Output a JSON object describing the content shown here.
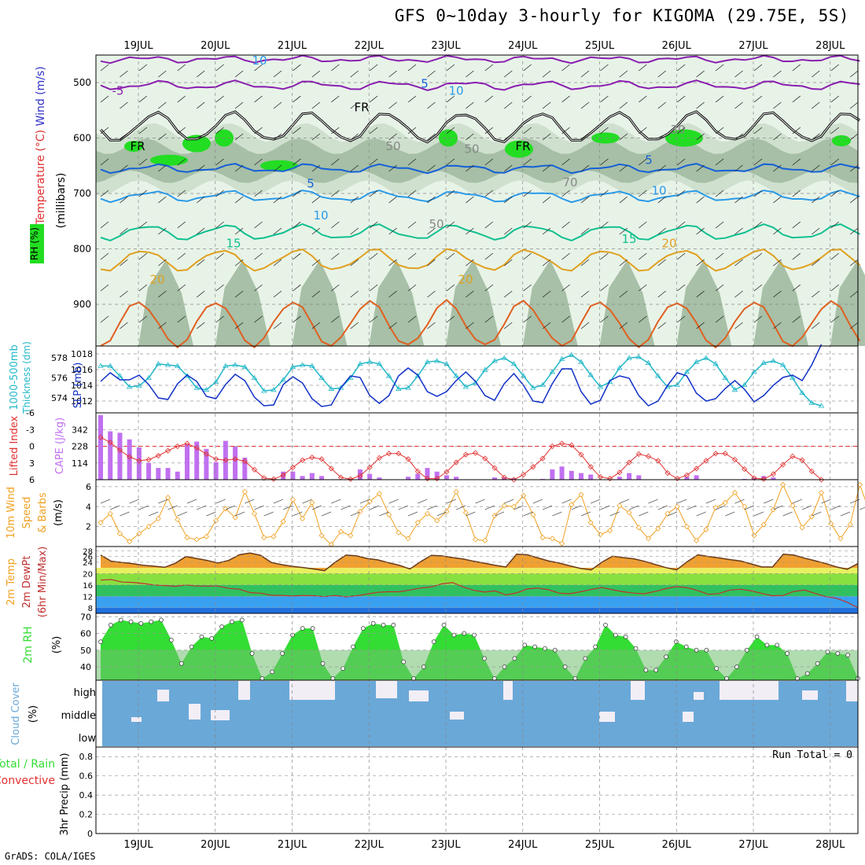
{
  "title": "GFS 0~10day 3-hourly for KIGOMA (29.75E, 5S)",
  "credit": "GrADS: COLA/IGES",
  "colors": {
    "rh_dark": "#9bb69b",
    "rh_mid": "#cfe0cf",
    "rh_light": "#e8f3e8",
    "rh_bright": "#22dd22",
    "thickness": "#22b8c8",
    "slp": "#1030c8",
    "cape": "#c070f0",
    "lifted": "#e03030",
    "wind10": "#f0a020",
    "temp_fill": "#f0a030",
    "rh2m": "#33dd33",
    "cloud": "#6aa8d8"
  },
  "chart_data": [
    {
      "type": "heatmap",
      "name": "upper-air cross-section",
      "ylabel_parts": [
        "Temperature",
        "(°C)",
        "Wind",
        "(m/s)"
      ],
      "ylabel2": "(millibars)",
      "rh_label": "RH (%)",
      "y_ticks": [
        500,
        600,
        700,
        800,
        900
      ],
      "ylim": [
        1000,
        450
      ],
      "x_ticks": [
        "19JUL",
        "20JUL",
        "21JUL",
        "22JUL",
        "23JUL",
        "24JUL",
        "25JUL",
        "26JUL",
        "27JUL",
        "28JUL"
      ],
      "contour_labels": [
        {
          "text": "-5",
          "p": 515
        },
        {
          "text": "5",
          "p": 502
        },
        {
          "text": "10",
          "p": 460
        },
        {
          "text": "10",
          "p": 515
        },
        {
          "text": "FR",
          "p": 545
        },
        {
          "text": "FR",
          "p": 615
        },
        {
          "text": "FR",
          "p": 615
        },
        {
          "text": "5",
          "p": 682
        },
        {
          "text": "5",
          "p": 640
        },
        {
          "text": "10",
          "p": 740
        },
        {
          "text": "10",
          "p": 695
        },
        {
          "text": "15",
          "p": 790
        },
        {
          "text": "15",
          "p": 782
        },
        {
          "text": "20",
          "p": 855
        },
        {
          "text": "20",
          "p": 855
        },
        {
          "text": "20",
          "p": 790
        },
        {
          "text": "30",
          "p": 585
        },
        {
          "text": "50",
          "p": 615
        },
        {
          "text": "50",
          "p": 755
        },
        {
          "text": "50",
          "p": 620
        },
        {
          "text": "70",
          "p": 680
        }
      ]
    },
    {
      "type": "line",
      "name": "thickness-slp",
      "ylabel_left": "1000-500mb Thickness (dm)",
      "ylabel_right": "SLP (mb)",
      "y_ticks_left": [
        574,
        576,
        578
      ],
      "y_ticks_right": [
        1012,
        1014,
        1016,
        1018
      ],
      "ylim_left": [
        572.5,
        579.2
      ],
      "ylim_right": [
        1010.5,
        1019
      ],
      "series": [
        {
          "values": [
            577.2,
            577.2,
            576.2,
            575.1,
            575.2,
            576.0,
            577.4,
            577.3,
            577.2,
            576.2,
            575.0,
            574.8,
            575.6,
            577.2,
            577.3,
            577.1,
            576.0,
            574.7,
            574.8,
            575.8,
            577.1,
            577.3,
            577.2,
            576.0,
            574.9,
            575.0,
            576.0,
            577.4,
            577.6,
            577.4,
            576.2,
            574.9,
            575.0,
            576.2,
            577.6,
            577.7,
            577.4,
            576.2,
            575.1,
            575.5,
            576.8,
            577.7,
            578.0,
            577.4,
            576.2,
            575.0,
            575.3,
            576.6,
            577.9,
            578.3,
            577.6,
            576.3,
            575.1,
            575.6,
            577.0,
            578.0,
            578.1,
            577.5,
            576.2,
            575.1,
            575.3,
            576.6,
            577.6,
            578.0,
            577.4,
            576.0,
            574.8,
            575.3,
            576.6,
            577.5,
            577.7,
            577.3,
            576.0,
            574.5,
            573.5,
            573.2
          ]
        },
        {
          "values": [
            1014.5,
            1015.6,
            1014.7,
            1014.7,
            1015.3,
            1014.1,
            1012.4,
            1012.2,
            1014.2,
            1015.3,
            1014.5,
            1012.6,
            1012.3,
            1014.1,
            1015.4,
            1014.6,
            1012.5,
            1011.4,
            1011.5,
            1014.1,
            1015.1,
            1014.3,
            1012.3,
            1011.3,
            1011.5,
            1013.7,
            1015.2,
            1015.0,
            1012.7,
            1011.7,
            1012.7,
            1015.2,
            1016.2,
            1015.3,
            1013.2,
            1012.6,
            1013.2,
            1014.6,
            1015.7,
            1014.5,
            1012.7,
            1012.1,
            1014.2,
            1015.5,
            1014.0,
            1012.0,
            1011.8,
            1014.2,
            1016.1,
            1016.1,
            1013.2,
            1011.6,
            1012.1,
            1014.6,
            1015.2,
            1014.9,
            1012.7,
            1011.4,
            1012.0,
            1014.0,
            1015.6,
            1015.2,
            1013.0,
            1012.0,
            1012.3,
            1013.6,
            1014.6,
            1013.5,
            1011.9,
            1012.7,
            1014.0,
            1015.0,
            1015.3,
            1014.6,
            1016.6,
            1019.2
          ]
        }
      ]
    },
    {
      "type": "bar",
      "name": "cape-lifted",
      "ylabel_left": "Lifted Index",
      "ylabel_right": "CAPE (J/kg)",
      "y_ticks_left": [
        "-6",
        "-3",
        "0",
        "3",
        "6"
      ],
      "y_ticks_right": [
        114,
        228,
        342
      ],
      "ylim_cape": [
        0,
        456
      ],
      "ylim_li": [
        -6,
        6
      ],
      "series": [
        {
          "values": [
            440,
            330,
            320,
            275,
            220,
            115,
            80,
            80,
            55,
            240,
            260,
            210,
            120,
            265,
            225,
            150,
            0,
            0,
            0,
            55,
            55,
            25,
            45,
            25,
            0,
            0,
            0,
            70,
            40,
            15,
            0,
            0,
            20,
            40,
            80,
            55,
            30,
            20,
            0,
            0,
            0,
            15,
            15,
            10,
            0,
            0,
            5,
            70,
            90,
            60,
            45,
            35,
            0,
            0,
            20,
            45,
            30,
            0,
            0,
            0,
            0,
            20,
            30,
            0,
            0,
            0,
            0,
            5,
            15,
            25,
            15,
            0,
            0,
            0,
            0,
            0
          ]
        },
        {
          "values": [
            -1.6,
            -0.7,
            0.7,
            1.9,
            2.6,
            2.4,
            1.7,
            0.8,
            0.0,
            -0.5,
            0.3,
            1.4,
            2.3,
            2.5,
            2.3,
            2.7,
            4.2,
            5.7,
            5.9,
            5.2,
            3.8,
            2.5,
            2.0,
            2.3,
            4.0,
            5.6,
            5.9,
            5.3,
            3.8,
            2.1,
            1.3,
            1.3,
            2.3,
            4.5,
            5.8,
            5.8,
            4.6,
            2.9,
            1.5,
            1.2,
            2.2,
            3.9,
            5.6,
            6.0,
            5.1,
            3.7,
            2.2,
            0.0,
            -0.5,
            -0.2,
            1.5,
            3.7,
            5.5,
            5.8,
            4.7,
            2.9,
            1.4,
            1.8,
            2.6,
            4.8,
            5.8,
            5.2,
            4.0,
            2.6,
            1.3,
            1.3,
            2.4,
            4.1,
            5.7,
            5.9,
            5.0,
            3.3,
            1.8,
            2.5,
            4.5,
            6.0
          ]
        }
      ]
    },
    {
      "type": "line",
      "name": "wind10",
      "ylabel": [
        "10m Wind",
        "Speed",
        "& Barbs",
        "(m/s)"
      ],
      "y_ticks": [
        2,
        4,
        6
      ],
      "ylim": [
        0,
        6.7
      ],
      "series": [
        {
          "values": [
            2.4,
            3.3,
            1.3,
            0.5,
            1.3,
            2.0,
            2.8,
            4.9,
            2.7,
            0.9,
            0.7,
            1.0,
            2.6,
            3.8,
            2.9,
            5.5,
            3.3,
            0.9,
            1.0,
            2.5,
            4.7,
            2.8,
            4.4,
            1.1,
            0.2,
            1.5,
            1.1,
            3.5,
            4.5,
            5.3,
            3.2,
            1.4,
            0.8,
            2.4,
            3.3,
            2.6,
            3.5,
            5.5,
            3.4,
            0.7,
            0.6,
            3.1,
            4.1,
            4.0,
            5.1,
            3.2,
            0.9,
            0.8,
            0.3,
            4.2,
            5.2,
            2.4,
            1.2,
            1.6,
            4.1,
            3.4,
            1.9,
            0.8,
            1.8,
            3.3,
            4.0,
            2.0,
            0.6,
            1.7,
            3.9,
            4.4,
            5.4,
            4.0,
            1.1,
            2.2,
            3.7,
            6.2,
            4.1,
            1.9,
            3.0,
            5.4,
            2.3,
            0.8,
            2.2,
            6.2,
            3.5
          ]
        }
      ]
    },
    {
      "type": "area",
      "name": "temperature-2m",
      "ylabel": [
        "2m Temp",
        "2m DewPt",
        "(6hr Min/Max)"
      ],
      "y_ticks": [
        8,
        12,
        16,
        20,
        24,
        26,
        28
      ],
      "ylim": [
        6,
        29.5
      ],
      "series": [
        {
          "values": [
            26.5,
            24.3,
            23.9,
            23.5,
            22.9,
            22.6,
            22.2,
            23.6,
            26.0,
            25.3,
            24.6,
            23.7,
            24.6,
            26.6,
            27.2,
            26.4,
            23.9,
            23.1,
            22.5,
            22.1,
            21.6,
            21.0,
            24.0,
            26.5,
            26.2,
            25.3,
            24.8,
            23.8,
            22.9,
            21.6,
            24.2,
            26.4,
            26.2,
            25.6,
            25.1,
            24.3,
            23.6,
            22.9,
            22.3,
            26.8,
            26.6,
            25.5,
            24.4,
            23.7,
            22.7,
            21.8,
            21.3,
            24.0,
            26.1,
            25.6,
            25.2,
            24.3,
            23.2,
            22.1,
            21.3,
            24.2,
            26.6,
            26.0,
            25.5,
            24.9,
            24.4,
            23.4,
            22.3,
            22.3,
            26.8,
            26.5,
            25.4,
            24.5,
            23.5,
            22.3,
            21.5,
            23.5
          ]
        },
        {
          "values": [
            17.7,
            17.9,
            17.0,
            16.9,
            16.5,
            16.0,
            15.8,
            15.5,
            16.0,
            15.6,
            15.6,
            15.6,
            14.8,
            14.5,
            13.3,
            13.1,
            12.4,
            12.3,
            12.1,
            12.3,
            12.2,
            11.9,
            12.3,
            11.8,
            12.2,
            12.8,
            13.4,
            13.6,
            13.6,
            14.2,
            14.9,
            15.3,
            16.4,
            16.8,
            15.3,
            14.1,
            13.5,
            13.9,
            12.5,
            13.2,
            14.6,
            14.9,
            14.3,
            13.1,
            12.9,
            13.6,
            14.4,
            15.1,
            14.3,
            13.6,
            13.1,
            12.9,
            13.7,
            14.7,
            15.4,
            15.0,
            14.0,
            12.7,
            13.0,
            14.2,
            14.5,
            13.9,
            13.0,
            12.2,
            12.3,
            13.7,
            14.2,
            13.0,
            11.9,
            11.3,
            9.9,
            8.0
          ]
        }
      ]
    },
    {
      "type": "area",
      "name": "rh-2m",
      "ylabel": "2m RH",
      "ylabel2": "(%)",
      "y_ticks": [
        40,
        50,
        60,
        70
      ],
      "ylim": [
        32,
        72
      ],
      "series": [
        {
          "values": [
            55,
            65,
            68,
            67,
            66,
            67,
            68,
            56,
            42,
            52,
            58,
            57,
            64,
            67,
            68,
            48,
            33,
            37,
            48,
            59,
            63,
            63,
            42,
            33,
            39,
            52,
            63,
            66,
            65,
            65,
            43,
            33,
            40,
            55,
            65,
            59,
            60,
            59,
            45,
            33,
            40,
            45,
            53,
            52,
            51,
            50,
            40,
            33,
            45,
            52,
            65,
            59,
            58,
            51,
            38,
            38,
            46,
            55,
            52,
            50,
            50,
            39,
            33,
            40,
            50,
            58,
            53,
            53,
            48,
            33,
            36,
            42,
            49,
            48,
            47,
            33
          ]
        }
      ]
    },
    {
      "type": "heatmap",
      "name": "cloud-cover",
      "ylabel": "Cloud Cover",
      "ylabel2": "(%)",
      "levels": [
        "high",
        "middle",
        "low"
      ]
    },
    {
      "type": "bar",
      "name": "precip",
      "ylabel_parts": [
        "Total / Rain",
        "Convective"
      ],
      "ylabel2": "3hr Precip (mm)",
      "y_ticks": [
        "0",
        "0.2",
        "0.4",
        "0.6",
        "0.8"
      ],
      "ylim": [
        0,
        0.9
      ],
      "run_total": "Run Total = 0",
      "values": []
    }
  ]
}
